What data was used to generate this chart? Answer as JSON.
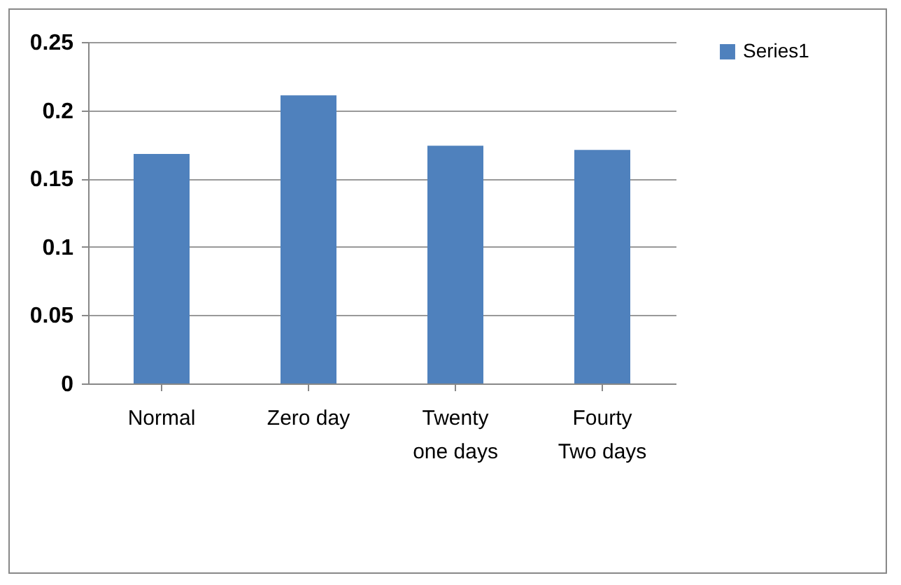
{
  "chart_data": {
    "type": "bar",
    "categories": [
      "Normal",
      "Zero day",
      "Twenty one days",
      "Fourty Two days"
    ],
    "series": [
      {
        "name": "Series1",
        "color": "#4f81bd",
        "values": [
          0.168,
          0.211,
          0.174,
          0.171
        ]
      }
    ],
    "ylim": [
      0,
      0.25
    ],
    "yticks": [
      0,
      0.05,
      0.1,
      0.15,
      0.2,
      0.25
    ],
    "grid": "y",
    "legend": "right"
  }
}
